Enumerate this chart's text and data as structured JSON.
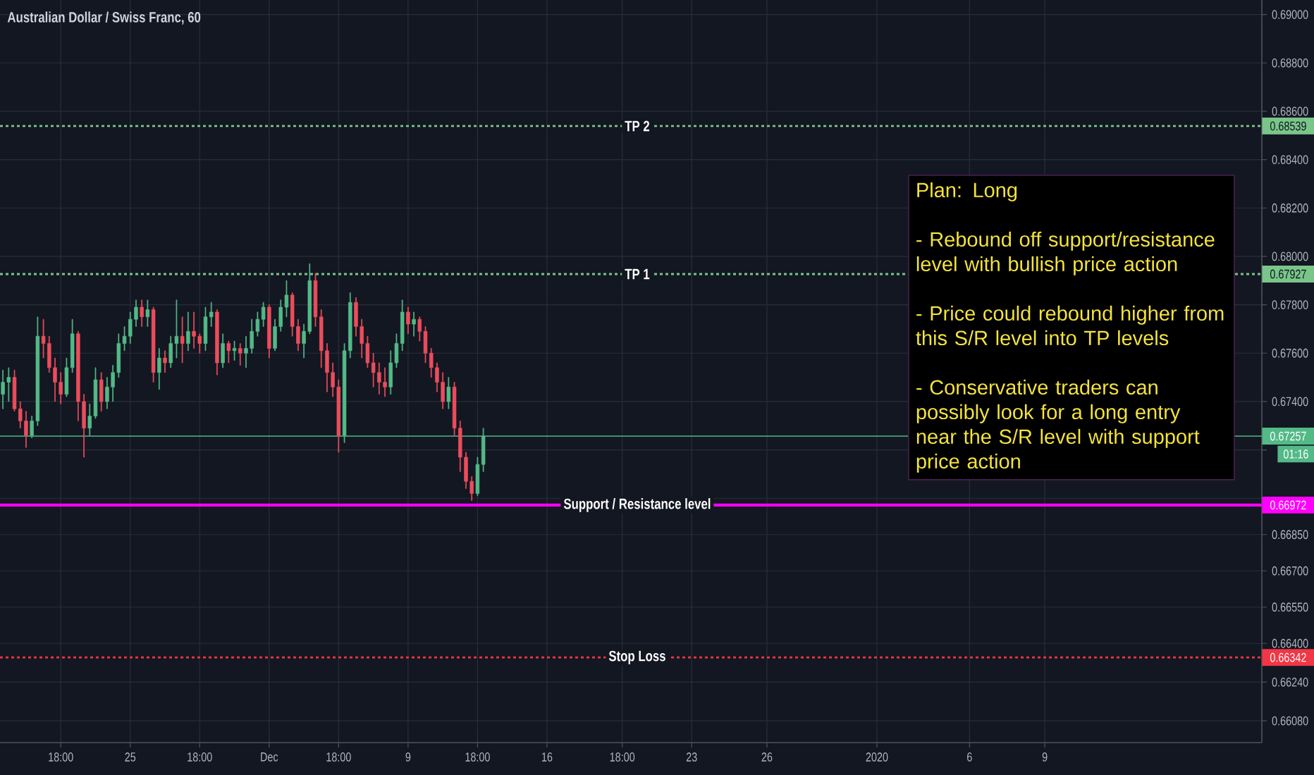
{
  "chart_data": {
    "type": "candlestick",
    "title": "Australian Dollar / Swiss Franc, 60",
    "categories": [
      null,
      null,
      null,
      null,
      null,
      null,
      null,
      null,
      null,
      null,
      "18:00",
      null,
      null,
      null,
      null,
      null,
      null,
      null,
      null,
      null,
      null,
      null,
      "25",
      null,
      null,
      null,
      null,
      null,
      null,
      null,
      null,
      null,
      null,
      null,
      "18:00",
      null,
      null,
      null,
      null,
      null,
      null,
      null,
      null,
      null,
      null,
      null,
      "Dec",
      null,
      null,
      null,
      null,
      null,
      null,
      null,
      null,
      null,
      null,
      null,
      "18:00",
      null,
      null,
      null,
      null,
      null,
      null,
      null,
      null,
      null,
      null,
      null,
      "9",
      null,
      null,
      null,
      null,
      null,
      null,
      null,
      null,
      null,
      null,
      null,
      "18:00",
      null,
      null,
      null,
      null,
      null,
      null,
      null,
      null,
      null,
      null,
      null,
      "16",
      null,
      null,
      null,
      null,
      null,
      null,
      null,
      null,
      null,
      null,
      null,
      null,
      "18:00",
      null,
      null,
      null,
      null,
      null,
      null,
      null,
      null,
      null,
      null,
      null,
      "23",
      null,
      null,
      null,
      null,
      null,
      null,
      null,
      null,
      null,
      null,
      null,
      null,
      "26",
      null,
      null,
      null,
      null,
      null,
      null,
      null,
      null,
      null,
      null,
      null,
      null,
      null,
      null,
      null,
      null,
      null,
      null,
      "2020",
      null,
      null,
      null,
      null,
      null,
      null,
      null,
      null,
      null,
      null,
      null,
      null,
      null,
      null,
      null,
      "6",
      null,
      null,
      null,
      null,
      null,
      null,
      null,
      null,
      null,
      null,
      null,
      null,
      "9",
      null,
      null,
      null,
      null,
      null,
      null,
      null,
      null,
      null,
      null,
      null,
      null,
      null,
      null,
      null,
      null,
      null,
      null,
      null,
      null,
      null,
      null,
      null,
      null,
      null,
      null,
      null,
      null,
      null,
      null,
      null,
      null,
      null,
      null,
      null,
      null,
      null
    ],
    "ohlc": [
      [
        0.6743,
        0.6753,
        0.6737,
        0.6748
      ],
      [
        0.6748,
        0.6754,
        0.674,
        0.675
      ],
      [
        0.675,
        0.6753,
        0.6736,
        0.6737
      ],
      [
        0.6737,
        0.674,
        0.6729,
        0.6732
      ],
      [
        0.6732,
        0.6736,
        0.6721,
        0.6726
      ],
      [
        0.6726,
        0.6734,
        0.6725,
        0.6732
      ],
      [
        0.6732,
        0.6775,
        0.673,
        0.6767
      ],
      [
        0.6767,
        0.6774,
        0.6758,
        0.6764
      ],
      [
        0.6764,
        0.6767,
        0.6752,
        0.6754
      ],
      [
        0.6754,
        0.6758,
        0.674,
        0.6748
      ],
      [
        0.6748,
        0.6752,
        0.6739,
        0.6743
      ],
      [
        0.6743,
        0.6758,
        0.6742,
        0.6754
      ],
      [
        0.6754,
        0.6774,
        0.6752,
        0.6768
      ],
      [
        0.6768,
        0.6769,
        0.6732,
        0.674
      ],
      [
        0.674,
        0.6743,
        0.6717,
        0.6729
      ],
      [
        0.6729,
        0.6739,
        0.6726,
        0.6734
      ],
      [
        0.6734,
        0.6754,
        0.6733,
        0.6749
      ],
      [
        0.6749,
        0.6752,
        0.6736,
        0.674
      ],
      [
        0.674,
        0.675,
        0.6737,
        0.6746
      ],
      [
        0.6746,
        0.6755,
        0.674,
        0.6752
      ],
      [
        0.6752,
        0.6768,
        0.675,
        0.6764
      ],
      [
        0.6764,
        0.6771,
        0.6761,
        0.6767
      ],
      [
        0.6767,
        0.6777,
        0.6764,
        0.6774
      ],
      [
        0.6774,
        0.6782,
        0.6771,
        0.6779
      ],
      [
        0.6779,
        0.6782,
        0.6771,
        0.6775
      ],
      [
        0.6775,
        0.6782,
        0.6771,
        0.6778
      ],
      [
        0.6778,
        0.6779,
        0.6748,
        0.6752
      ],
      [
        0.6752,
        0.6762,
        0.6745,
        0.6758
      ],
      [
        0.6758,
        0.6761,
        0.6752,
        0.6756
      ],
      [
        0.6756,
        0.6767,
        0.6754,
        0.6764
      ],
      [
        0.6764,
        0.6782,
        0.6758,
        0.6767
      ],
      [
        0.6767,
        0.6775,
        0.6756,
        0.6764
      ],
      [
        0.6764,
        0.6777,
        0.6761,
        0.6769
      ],
      [
        0.6769,
        0.6777,
        0.6762,
        0.6767
      ],
      [
        0.6767,
        0.6768,
        0.676,
        0.6764
      ],
      [
        0.6764,
        0.6779,
        0.6761,
        0.6775
      ],
      [
        0.6775,
        0.6781,
        0.6771,
        0.6777
      ],
      [
        0.6777,
        0.6778,
        0.6751,
        0.6756
      ],
      [
        0.6756,
        0.6768,
        0.6754,
        0.6764
      ],
      [
        0.6764,
        0.6765,
        0.6756,
        0.6761
      ],
      [
        0.6761,
        0.6765,
        0.6757,
        0.6762
      ],
      [
        0.6762,
        0.6764,
        0.6755,
        0.676
      ],
      [
        0.676,
        0.6767,
        0.6754,
        0.6762
      ],
      [
        0.6762,
        0.6774,
        0.676,
        0.6769
      ],
      [
        0.6769,
        0.6777,
        0.6767,
        0.6774
      ],
      [
        0.6774,
        0.6781,
        0.6771,
        0.6779
      ],
      [
        0.6779,
        0.678,
        0.6758,
        0.6762
      ],
      [
        0.6762,
        0.6774,
        0.6761,
        0.6771
      ],
      [
        0.6771,
        0.6782,
        0.6769,
        0.6779
      ],
      [
        0.6779,
        0.679,
        0.6775,
        0.6784
      ],
      [
        0.6784,
        0.6785,
        0.6767,
        0.6771
      ],
      [
        0.6771,
        0.6774,
        0.6761,
        0.6764
      ],
      [
        0.6764,
        0.6772,
        0.6758,
        0.6769
      ],
      [
        0.6769,
        0.6797,
        0.6768,
        0.679
      ],
      [
        0.679,
        0.6793,
        0.6771,
        0.6775
      ],
      [
        0.6775,
        0.6778,
        0.6754,
        0.6761
      ],
      [
        0.6761,
        0.6764,
        0.6744,
        0.6752
      ],
      [
        0.6752,
        0.6756,
        0.6742,
        0.6746
      ],
      [
        0.6746,
        0.6749,
        0.6719,
        0.6726
      ],
      [
        0.6726,
        0.6764,
        0.6723,
        0.6761
      ],
      [
        0.6761,
        0.6785,
        0.6758,
        0.6781
      ],
      [
        0.6781,
        0.6783,
        0.6767,
        0.6771
      ],
      [
        0.6771,
        0.6774,
        0.6758,
        0.6764
      ],
      [
        0.6764,
        0.6767,
        0.6754,
        0.6756
      ],
      [
        0.6756,
        0.676,
        0.6746,
        0.6752
      ],
      [
        0.6752,
        0.6756,
        0.6743,
        0.6748
      ],
      [
        0.6748,
        0.6754,
        0.6742,
        0.6746
      ],
      [
        0.6746,
        0.6761,
        0.6743,
        0.6756
      ],
      [
        0.6756,
        0.6768,
        0.6754,
        0.6764
      ],
      [
        0.6764,
        0.6782,
        0.6761,
        0.6777
      ],
      [
        0.6777,
        0.6779,
        0.6768,
        0.6772
      ],
      [
        0.6772,
        0.6777,
        0.6767,
        0.6774
      ],
      [
        0.6774,
        0.6775,
        0.6765,
        0.6769
      ],
      [
        0.6769,
        0.6771,
        0.6756,
        0.676
      ],
      [
        0.676,
        0.6762,
        0.675,
        0.6754
      ],
      [
        0.6754,
        0.6756,
        0.6744,
        0.6748
      ],
      [
        0.6748,
        0.6752,
        0.6737,
        0.674
      ],
      [
        0.674,
        0.675,
        0.6737,
        0.6746
      ],
      [
        0.6746,
        0.6748,
        0.6726,
        0.6729
      ],
      [
        0.6729,
        0.6732,
        0.6711,
        0.6717
      ],
      [
        0.6717,
        0.6719,
        0.6704,
        0.6707
      ],
      [
        0.6707,
        0.6709,
        0.6699,
        0.6702
      ],
      [
        0.6702,
        0.6717,
        0.6701,
        0.6714
      ],
      [
        0.6714,
        0.6729,
        0.6711,
        0.67257
      ],
      null,
      null,
      null,
      null,
      null,
      null,
      null,
      null,
      null,
      null,
      null,
      null,
      null,
      null,
      null,
      null,
      null,
      null,
      null,
      null,
      null,
      null,
      null,
      null,
      null,
      null,
      null,
      null,
      null,
      null,
      null,
      null,
      null,
      null,
      null,
      null,
      null,
      null,
      null,
      null,
      null,
      null,
      null,
      null,
      null,
      null,
      null,
      null,
      null,
      null,
      null,
      null,
      null,
      null,
      null,
      null,
      null,
      null,
      null,
      null,
      null,
      null,
      null,
      null,
      null,
      null,
      null,
      null,
      null,
      null,
      null,
      null,
      null,
      null,
      null,
      null,
      null,
      null,
      null,
      null,
      null,
      null,
      null,
      null,
      null,
      null,
      null,
      null,
      null,
      null,
      null,
      null,
      null,
      null,
      null,
      null,
      null,
      null,
      null,
      null,
      null,
      null,
      null,
      null,
      null,
      null,
      null,
      null,
      null,
      null,
      null,
      null,
      null,
      null,
      null,
      null,
      null,
      null,
      null,
      null,
      null,
      null,
      null,
      null,
      null,
      null,
      null,
      null,
      null,
      null,
      null,
      null,
      null,
      null
    ],
    "colors": [
      "#53b987",
      "#53b987",
      "#eb4d5c",
      "#eb4d5c",
      "#eb4d5c",
      "#53b987",
      "#53b987",
      "#eb4d5c",
      "#eb4d5c",
      "#eb4d5c",
      "#eb4d5c",
      "#53b987",
      "#53b987",
      "#eb4d5c",
      "#eb4d5c",
      "#53b987",
      "#53b987",
      "#eb4d5c",
      "#53b987",
      "#53b987",
      "#53b987",
      "#53b987",
      "#53b987",
      "#53b987",
      "#eb4d5c",
      "#53b987",
      "#eb4d5c",
      "#53b987",
      "#eb4d5c",
      "#53b987",
      "#53b987",
      "#eb4d5c",
      "#53b987",
      "#eb4d5c",
      "#eb4d5c",
      "#53b987",
      "#53b987",
      "#eb4d5c",
      "#53b987",
      "#eb4d5c",
      "#53b987",
      "#eb4d5c",
      "#53b987",
      "#53b987",
      "#53b987",
      "#53b987",
      "#eb4d5c",
      "#53b987",
      "#53b987",
      "#53b987",
      "#eb4d5c",
      "#eb4d5c",
      "#53b987",
      "#53b987",
      "#eb4d5c",
      "#eb4d5c",
      "#eb4d5c",
      "#eb4d5c",
      "#eb4d5c",
      "#53b987",
      "#53b987",
      "#eb4d5c",
      "#eb4d5c",
      "#eb4d5c",
      "#eb4d5c",
      "#eb4d5c",
      "#eb4d5c",
      "#53b987",
      "#53b987",
      "#53b987",
      "#eb4d5c",
      "#53b987",
      "#eb4d5c",
      "#eb4d5c",
      "#eb4d5c",
      "#eb4d5c",
      "#eb4d5c",
      "#53b987",
      "#eb4d5c",
      "#eb4d5c",
      "#eb4d5c",
      "#eb4d5c",
      "#53b987",
      "#53b987",
      null,
      null,
      null,
      null,
      null,
      null,
      null,
      null,
      null,
      null,
      null,
      null,
      null,
      null,
      null,
      null,
      null,
      null,
      null,
      null,
      null,
      null,
      null,
      null,
      null,
      null,
      null,
      null,
      null,
      null,
      null,
      null,
      null,
      null,
      null,
      null,
      null,
      null,
      null,
      null,
      null,
      null,
      null,
      null,
      null,
      null,
      null,
      null,
      null,
      null,
      null,
      null,
      null,
      null,
      null,
      null,
      null,
      null,
      null,
      null,
      null,
      null,
      null,
      null,
      null,
      null,
      null,
      null,
      null,
      null,
      null,
      null,
      null,
      null,
      null,
      null,
      null,
      null,
      null,
      null,
      null,
      null,
      null,
      null,
      null,
      null,
      null,
      null,
      null,
      null,
      null,
      null,
      null,
      null,
      null,
      null,
      null,
      null,
      null,
      null,
      null,
      null,
      null,
      null,
      null,
      null,
      null,
      null,
      null,
      null,
      null,
      null,
      null,
      null,
      null,
      null,
      null,
      null,
      null,
      null,
      null,
      null,
      null,
      null,
      null,
      null,
      null,
      null,
      null,
      null,
      null,
      null,
      null,
      null
    ],
    "ylim": [
      0.6599,
      0.6906
    ],
    "yticks": [
      {
        "value": 0.69,
        "label": "0.69000"
      },
      {
        "value": 0.688,
        "label": "0.68800"
      },
      {
        "value": 0.686,
        "label": "0.68600"
      },
      {
        "value": 0.684,
        "label": "0.68400"
      },
      {
        "value": 0.682,
        "label": "0.68200"
      },
      {
        "value": 0.68,
        "label": "0.68000"
      },
      {
        "value": 0.678,
        "label": "0.67800"
      },
      {
        "value": 0.676,
        "label": "0.67600"
      },
      {
        "value": 0.674,
        "label": "0.67400"
      },
      {
        "value": 0.672,
        "label": null
      },
      {
        "value": 0.67,
        "label": null
      },
      {
        "value": 0.6685,
        "label": "0.66850"
      },
      {
        "value": 0.667,
        "label": "0.66700"
      },
      {
        "value": 0.6655,
        "label": "0.66550"
      },
      {
        "value": 0.664,
        "label": "0.66400"
      },
      {
        "value": 0.6624,
        "label": "0.66240"
      },
      {
        "value": 0.6608,
        "label": "0.66080"
      }
    ],
    "grid": true,
    "ref_lines": [
      {
        "axis": "y",
        "value": 0.68539,
        "label": "TP 2",
        "color": "#7ac68a",
        "line_style": "dotted"
      },
      {
        "axis": "y",
        "value": 0.67927,
        "label": "TP 1",
        "color": "#7ac68a",
        "line_style": "dotted"
      },
      {
        "axis": "y",
        "value": 0.67257,
        "color": "#53b987",
        "line_style": "solid"
      },
      {
        "axis": "y",
        "value": 0.66972,
        "label": "Support / Resistance level",
        "color": "#ff00ff",
        "line_style": "solid"
      },
      {
        "axis": "y",
        "value": 0.66342,
        "label": "Stop Loss",
        "color": "#f23645",
        "line_style": "dotted"
      }
    ],
    "annotations": [
      "Plan: Long",
      "- Rebound off support/resistance level with bullish price action",
      "- Price could rebound higher from this S/R level into TP levels",
      "- Conservative traders can possibly look for a long entry near the S/R level with support price action",
      "01:16",
      {
        "text": "0.68539",
        "y": 0.68539
      },
      {
        "text": "0.67927",
        "y": 0.67927
      },
      {
        "text": "0.67257",
        "y": 0.67257
      },
      {
        "text": "0.66972",
        "y": 0.66972
      },
      {
        "text": "0.66342",
        "y": 0.66342
      }
    ]
  }
}
